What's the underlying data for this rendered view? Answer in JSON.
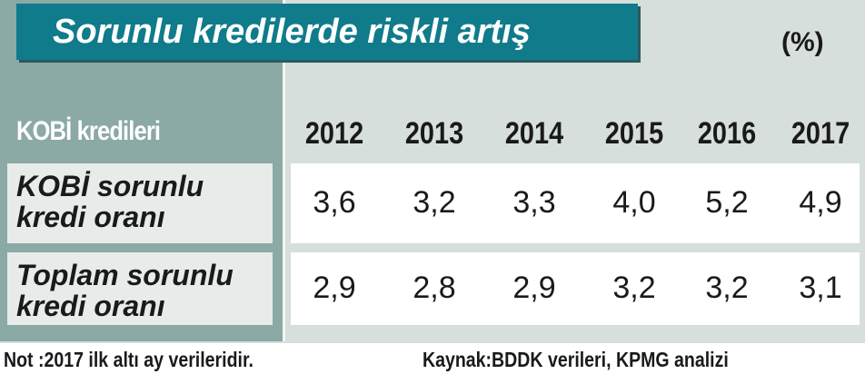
{
  "header": {
    "title": "Sorunlu kredilerde riskli artış",
    "unit": "(%)"
  },
  "table": {
    "corner": "KOBİ kredileri",
    "columns": [
      "2012",
      "2013",
      "2014",
      "2015",
      "2016",
      "2017"
    ],
    "rows": [
      {
        "label": "KOBİ sorunlu kredi oranı",
        "values": [
          "3,6",
          "3,2",
          "3,3",
          "4,0",
          "5,2",
          "4,9"
        ]
      },
      {
        "label": "Toplam sorunlu kredi oranı",
        "values": [
          "2,9",
          "2,8",
          "2,9",
          "3,2",
          "3,2",
          "3,1"
        ]
      }
    ]
  },
  "footer": {
    "note": "Not :2017 ilk altı ay verileridir.",
    "source": "Kaynak:BDDK verileri, KPMG analizi"
  }
}
